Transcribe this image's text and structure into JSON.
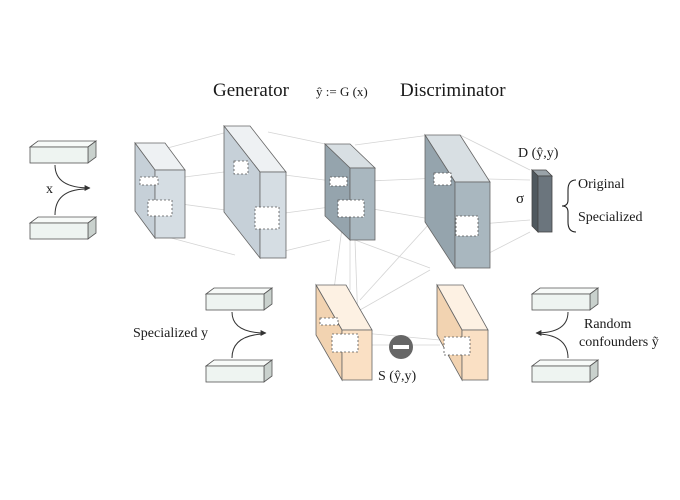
{
  "header": {
    "generator_label": "Generator",
    "formula_label": "ŷ := G (x)",
    "discriminator_label": "Discriminator"
  },
  "inputs": {
    "x_label": "x",
    "specialized_y_label": "Specialized y",
    "random_confounders_line1": "Random",
    "random_confounders_line2": "confounders ỹ"
  },
  "discriminator_output": {
    "d_label": "D (ŷ,y)",
    "sigma_label": "σ",
    "original_label": "Original",
    "specialized_label": "Specialized"
  },
  "similarity": {
    "s_label": "S (ŷ,y)"
  },
  "colors": {
    "generator_block": "#d5dde3",
    "discriminator_block": "#a9b7bf",
    "specialized_block": "#fae0c4",
    "input_bar": "#eef4f1",
    "sigma_bar": "#6b757d",
    "minus_circle": "#666666"
  }
}
